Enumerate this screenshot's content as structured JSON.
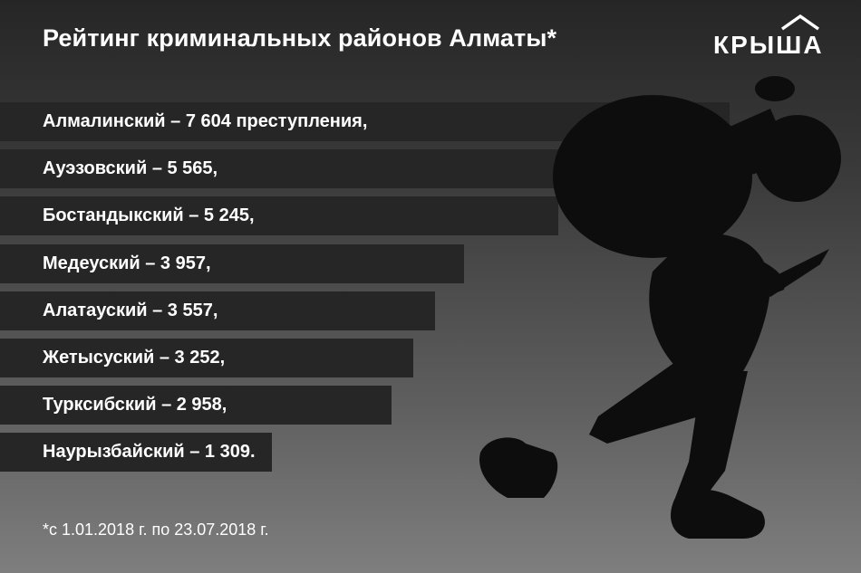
{
  "title": "Рейтинг криминальных районов Алматы*",
  "logo": {
    "text": "КРЫША",
    "icon": "house-roof-icon"
  },
  "footnote": "*с 1.01.2018 г. по 23.07.2018 г.",
  "illustration": "thief-silhouette-icon",
  "colors": {
    "bar": "#262626",
    "text": "#ffffff",
    "silhouette": "#0d0d0d"
  },
  "chart_data": {
    "type": "bar",
    "orientation": "horizontal",
    "title": "Рейтинг криминальных районов Алматы*",
    "categories": [
      "Алмалинский",
      "Ауэзовский",
      "Бостандыкский",
      "Медеуский",
      "Алатауский",
      "Жетысуский",
      "Турксибский",
      "Наурызбайский"
    ],
    "values": [
      7604,
      5565,
      5245,
      3957,
      3557,
      3252,
      2958,
      1309
    ],
    "labels": [
      "Алмалинский –  7 604 преступления,",
      "Ауэзовский – 5 565,",
      "Бостандыкский – 5 245,",
      "Медеуский – 3 957,",
      "Алатауский – 3 557,",
      "Жетысуский – 3 252,",
      "Турксибский – 2 958,",
      "Наурызбайский – 1 309."
    ]
  }
}
